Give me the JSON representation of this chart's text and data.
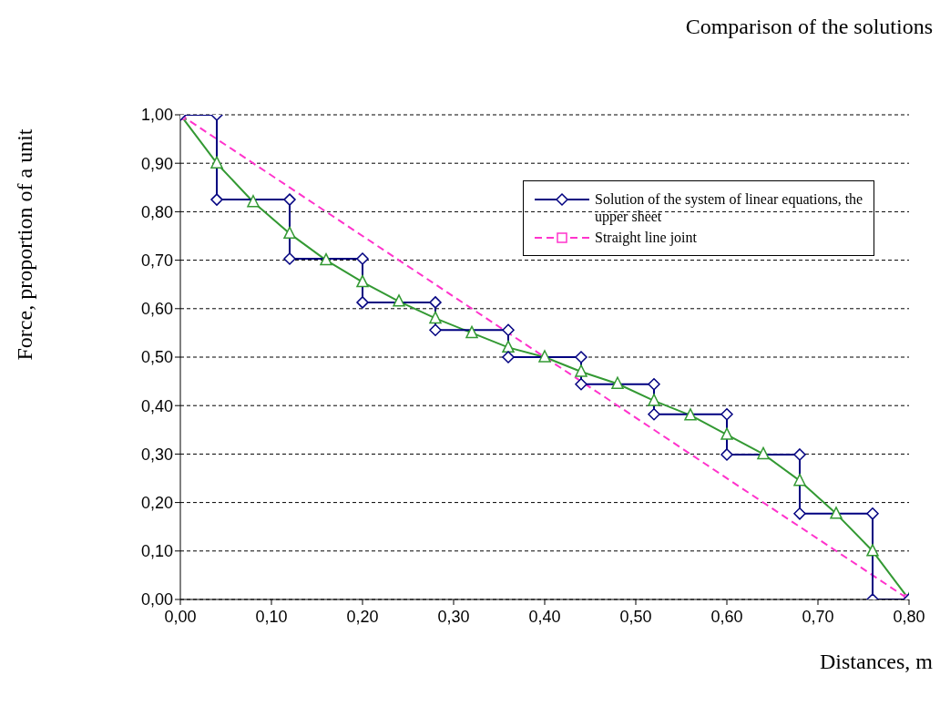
{
  "chart_data": {
    "type": "line",
    "title": "Comparison of the solutions",
    "xlabel": "Distances, m",
    "ylabel": "Force, proportion of a unit",
    "xlim": [
      0,
      0.8
    ],
    "xticks": [
      {
        "value": 0,
        "label": "0,00"
      },
      {
        "value": 0.1,
        "label": "0,10"
      },
      {
        "value": 0.2,
        "label": "0,20"
      },
      {
        "value": 0.3,
        "label": "0,30"
      },
      {
        "value": 0.4,
        "label": "0,40"
      },
      {
        "value": 0.5,
        "label": "0,50"
      },
      {
        "value": 0.6,
        "label": "0,60"
      },
      {
        "value": 0.7,
        "label": "0,70"
      },
      {
        "value": 0.8,
        "label": "0,80"
      }
    ],
    "ylim": [
      0,
      1
    ],
    "yticks": [
      {
        "value": 0,
        "label": "0,00"
      },
      {
        "value": 0.1,
        "label": "0,10"
      },
      {
        "value": 0.2,
        "label": "0,20"
      },
      {
        "value": 0.3,
        "label": "0,30"
      },
      {
        "value": 0.4,
        "label": "0,40"
      },
      {
        "value": 0.5,
        "label": "0,50"
      },
      {
        "value": 0.6,
        "label": "0,60"
      },
      {
        "value": 0.7,
        "label": "0,70"
      },
      {
        "value": 0.8,
        "label": "0,80"
      },
      {
        "value": 0.9,
        "label": "0,90"
      },
      {
        "value": 1,
        "label": "1,00"
      }
    ],
    "grid": "y",
    "legend": "top right",
    "series": [
      {
        "name": "Solution of the system of linear equations, the upper sheet",
        "color": "#000080",
        "marker": "diamond",
        "line_style": "solid",
        "x": [
          0,
          0.04,
          0.04,
          0.12,
          0.12,
          0.2,
          0.2,
          0.28,
          0.28,
          0.36,
          0.36,
          0.44,
          0.44,
          0.52,
          0.52,
          0.6,
          0.6,
          0.68,
          0.68,
          0.76,
          0.76,
          0.8
        ],
        "values": [
          1,
          1,
          0.825,
          0.825,
          0.703,
          0.703,
          0.613,
          0.613,
          0.556,
          0.556,
          0.5,
          0.5,
          0.444,
          0.444,
          0.382,
          0.382,
          0.299,
          0.299,
          0.177,
          0.177,
          0,
          0
        ]
      },
      {
        "name": "Straight line joint",
        "color": "#ff33cc",
        "marker": "square",
        "line_style": "dashed",
        "x": [
          0,
          0.8
        ],
        "values": [
          1,
          0
        ]
      },
      {
        "color": "#339933",
        "marker": "triangle",
        "line_style": "solid",
        "x": [
          0,
          0.04,
          0.08,
          0.12,
          0.16,
          0.2,
          0.24,
          0.28,
          0.32,
          0.36,
          0.4,
          0.44,
          0.48,
          0.52,
          0.56,
          0.6,
          0.64,
          0.68,
          0.72,
          0.76,
          0.8
        ],
        "values": [
          1,
          0.9,
          0.82,
          0.755,
          0.7,
          0.655,
          0.615,
          0.58,
          0.55,
          0.52,
          0.5,
          0.47,
          0.445,
          0.41,
          0.38,
          0.34,
          0.3,
          0.245,
          0.177,
          0.1,
          0
        ]
      }
    ]
  }
}
